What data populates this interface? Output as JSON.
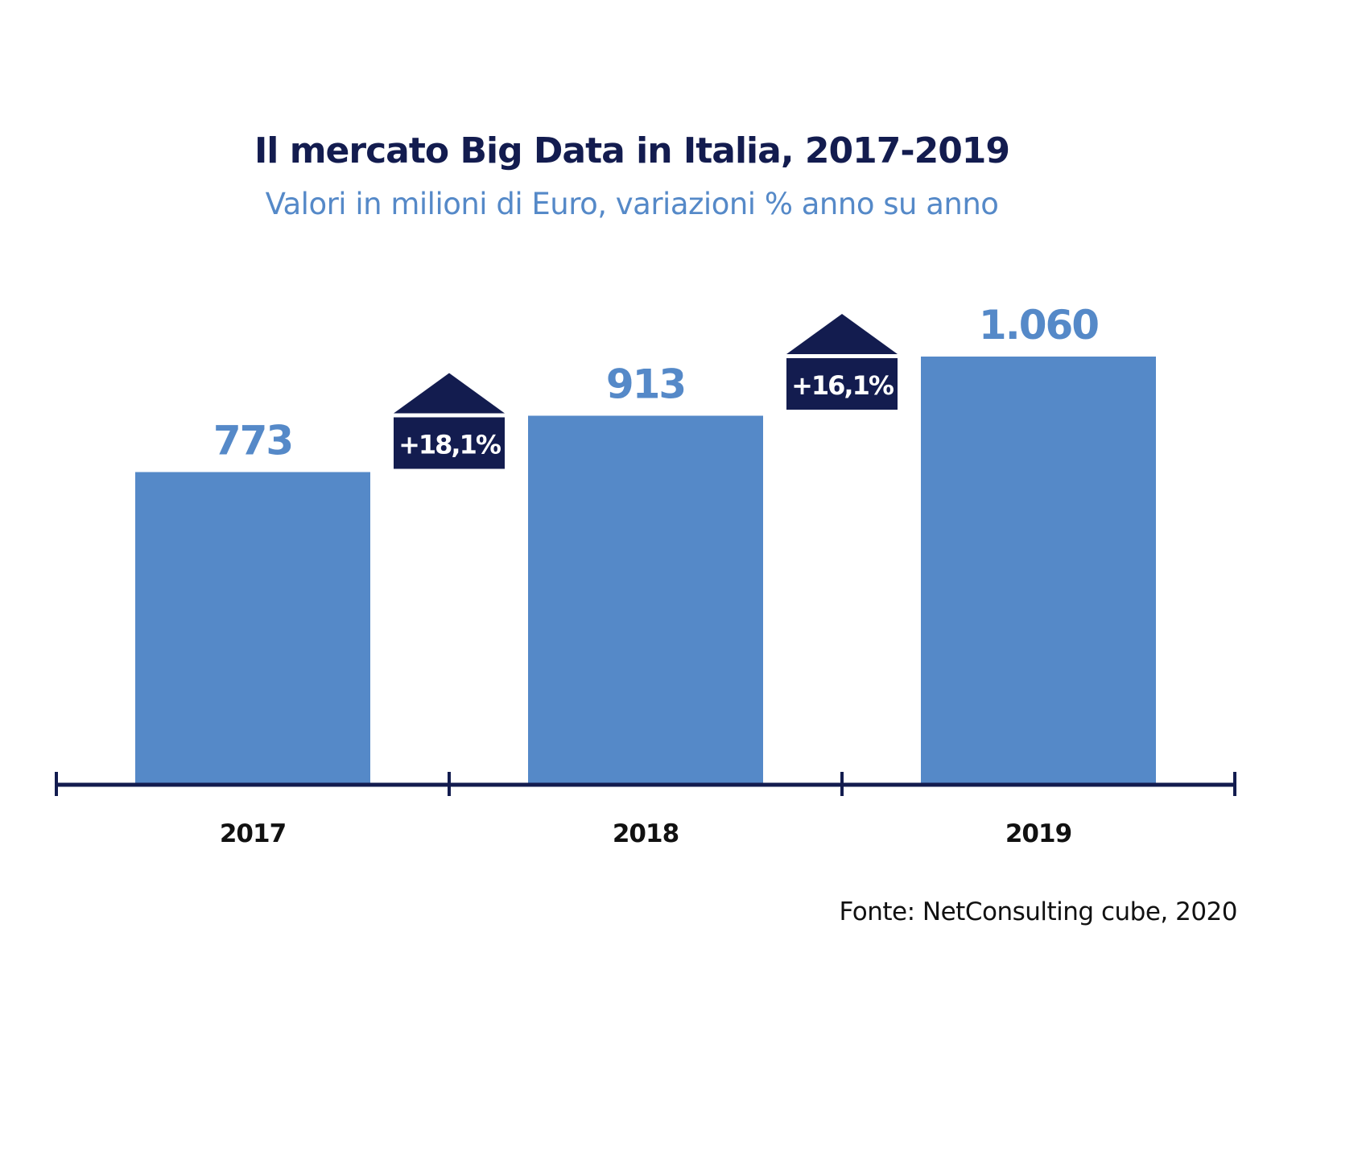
{
  "chart_data": {
    "type": "bar",
    "title": "Il mercato Big Data in Italia, 2017-2019",
    "subtitle": "Valori in milioni di Euro, variazioni % anno su anno",
    "categories": [
      "2017",
      "2018",
      "2019"
    ],
    "values": [
      773,
      913,
      1060
    ],
    "value_labels": [
      "773",
      "913",
      "1.060"
    ],
    "changes": [
      {
        "between": [
          "2017",
          "2018"
        ],
        "label": "+18,1%"
      },
      {
        "between": [
          "2018",
          "2019"
        ],
        "label": "+16,1%"
      }
    ],
    "xlabel": "",
    "ylabel": "",
    "grid": false,
    "source": "Fonte: NetConsulting cube, 2020",
    "colors": {
      "bar": "#5589c8",
      "axis": "#131c4f",
      "badge": "#131c4f",
      "title": "#131c4f",
      "subtitle": "#5589c8"
    }
  }
}
